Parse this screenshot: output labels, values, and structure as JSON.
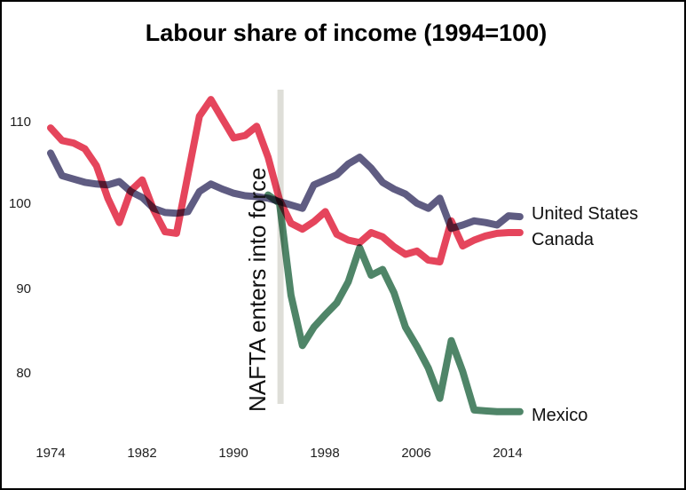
{
  "chart_data": {
    "type": "line",
    "title": "Labour share of income (1994=100)",
    "xlabel": "",
    "ylabel": "",
    "xlim": [
      1973.5,
      2016.5
    ],
    "ylim": [
      73,
      114
    ],
    "grid": false,
    "axes_drawn": false,
    "xticks": [
      "1974",
      "1982",
      "1990",
      "1998",
      "2006",
      "2014"
    ],
    "yticks": [
      "110",
      "100",
      "90",
      "80"
    ],
    "legend_position": "end-of-line-labels",
    "annotation": {
      "label": "NAFTA enters into force",
      "x": 1994,
      "bar_color": "#deded8",
      "text_color": "#111111"
    },
    "series": [
      {
        "name": "United States",
        "color": "#5f5c82",
        "start_year": 1974,
        "end_year": 2015,
        "values": [
          106.0,
          103.3,
          102.9,
          102.5,
          102.3,
          102.2,
          102.6,
          101.4,
          100.7,
          99.4,
          98.9,
          98.8,
          99.0,
          101.4,
          102.3,
          101.7,
          101.2,
          100.9,
          100.8,
          100.6,
          100.2,
          99.8,
          99.4,
          102.2,
          102.8,
          103.4,
          104.7,
          105.5,
          104.2,
          102.5,
          101.7,
          101.1,
          100.0,
          99.4,
          100.6,
          97.0,
          97.4,
          97.9,
          97.7,
          97.4,
          98.5,
          98.4
        ]
      },
      {
        "name": "Canada",
        "color": "#e5455c",
        "start_year": 1974,
        "end_year": 2015,
        "values": [
          109.0,
          107.5,
          107.2,
          106.5,
          104.5,
          100.6,
          97.7,
          101.5,
          102.8,
          99.2,
          96.6,
          96.4,
          103.4,
          110.4,
          112.4,
          110.1,
          107.8,
          108.1,
          109.2,
          105.5,
          100.4,
          97.6,
          96.9,
          97.8,
          99.0,
          96.3,
          95.6,
          95.3,
          96.5,
          96.0,
          94.8,
          93.9,
          94.3,
          93.2,
          93.0,
          97.9,
          94.9,
          95.6,
          96.1,
          96.4,
          96.5,
          96.5
        ]
      },
      {
        "name": "Mexico",
        "color": "#4f8568",
        "start_year": 1993,
        "end_year": 2015,
        "values": [
          101.0,
          100.0,
          89.0,
          83.0,
          85.2,
          86.7,
          88.1,
          90.6,
          94.7,
          91.4,
          92.1,
          89.3,
          85.2,
          82.9,
          80.3,
          76.7,
          83.6,
          79.9,
          75.3,
          75.2,
          75.1,
          75.1,
          75.1
        ]
      }
    ]
  }
}
